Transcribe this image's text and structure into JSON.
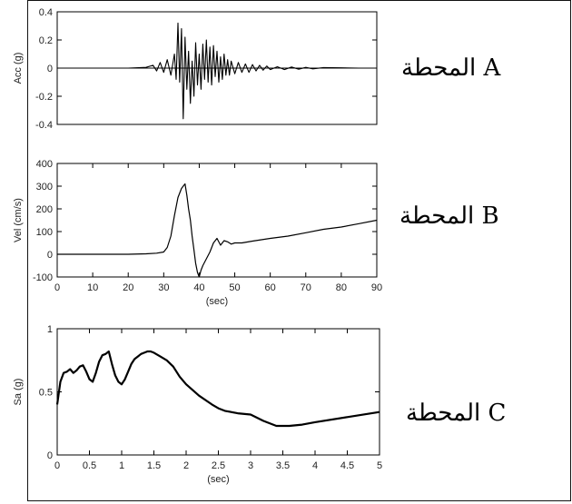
{
  "chart_data": [
    {
      "type": "line",
      "station_label": "المحطة A",
      "xlabel": "",
      "ylabel": "Acc (g)",
      "xlim": [
        0,
        90
      ],
      "ylim": [
        -0.4,
        0.4
      ],
      "yticks": [
        -0.4,
        -0.2,
        0,
        0.2,
        0.4
      ],
      "ytick_labels": [
        "-0.4",
        "-0.2",
        "0",
        "0.2",
        "0.4"
      ],
      "xticks": [],
      "xtick_labels": [],
      "grid": false,
      "series": [
        {
          "x": [
            0,
            5,
            10,
            15,
            20,
            25,
            27,
            28,
            29,
            30,
            31,
            32,
            33,
            33.5,
            34,
            34.5,
            35,
            35.5,
            36,
            36.5,
            37,
            37.5,
            38,
            38.5,
            39,
            39.5,
            40,
            40.5,
            41,
            41.5,
            42,
            42.5,
            43,
            43.5,
            44,
            44.5,
            45,
            45.5,
            46,
            46.5,
            47,
            47.5,
            48,
            48.5,
            49,
            50,
            51,
            52,
            53,
            54,
            55,
            56,
            57,
            58,
            59,
            60,
            62,
            64,
            66,
            68,
            70,
            72,
            75,
            80,
            85,
            90
          ],
          "y": [
            0,
            0,
            0,
            0,
            0,
            0.005,
            0.02,
            -0.02,
            0.04,
            -0.03,
            0.06,
            -0.05,
            0.1,
            -0.08,
            0.32,
            -0.1,
            0.28,
            -0.36,
            0.22,
            -0.15,
            0.12,
            -0.25,
            0.05,
            -0.2,
            0.18,
            -0.12,
            0.1,
            -0.15,
            0.17,
            -0.08,
            0.2,
            -0.1,
            0.15,
            -0.12,
            0.16,
            -0.06,
            0.12,
            -0.1,
            0.08,
            -0.08,
            0.1,
            -0.05,
            0.06,
            -0.05,
            0.05,
            -0.04,
            0.04,
            -0.03,
            0.03,
            -0.03,
            0.025,
            -0.02,
            0.02,
            -0.015,
            0.015,
            -0.01,
            0.01,
            -0.01,
            0.008,
            -0.008,
            0.005,
            -0.005,
            0.004,
            0.002,
            0,
            0
          ]
        }
      ]
    },
    {
      "type": "line",
      "station_label": "المحطة B",
      "xlabel": "(sec)",
      "ylabel": "Vel (cm/s)",
      "xlim": [
        0,
        90
      ],
      "ylim": [
        -100,
        400
      ],
      "yticks": [
        -100,
        0,
        100,
        200,
        300,
        400
      ],
      "ytick_labels": [
        "-100",
        "0",
        "100",
        "200",
        "300",
        "400"
      ],
      "xticks": [
        0,
        10,
        20,
        30,
        40,
        50,
        60,
        70,
        80,
        90
      ],
      "xtick_labels": [
        "0",
        "10",
        "20",
        "30",
        "40",
        "50",
        "60",
        "70",
        "80",
        "90"
      ],
      "grid": false,
      "series": [
        {
          "x": [
            0,
            10,
            20,
            25,
            28,
            30,
            31,
            32,
            33,
            34,
            35,
            35.5,
            36,
            36.5,
            37,
            37.5,
            38,
            38.5,
            39,
            39.5,
            40,
            40.5,
            41,
            42,
            43,
            44,
            45,
            46,
            47,
            48,
            49,
            50,
            52,
            55,
            60,
            65,
            70,
            75,
            80,
            85,
            90
          ],
          "y": [
            0,
            0,
            0,
            2,
            5,
            10,
            30,
            80,
            170,
            250,
            290,
            300,
            310,
            260,
            200,
            150,
            80,
            20,
            -40,
            -80,
            -100,
            -70,
            -50,
            -20,
            10,
            50,
            70,
            40,
            60,
            55,
            45,
            50,
            50,
            58,
            70,
            80,
            95,
            110,
            120,
            135,
            150
          ]
        }
      ]
    },
    {
      "type": "line",
      "station_label": "المحطة C",
      "xlabel": "(sec)",
      "ylabel": "Sa (g)",
      "xlim": [
        0,
        5
      ],
      "ylim": [
        0,
        1
      ],
      "yticks": [
        0,
        0.5,
        1
      ],
      "ytick_labels": [
        "0",
        "0.5",
        "1"
      ],
      "xticks": [
        0,
        0.5,
        1,
        1.5,
        2,
        2.5,
        3,
        3.5,
        4,
        4.5,
        5
      ],
      "xtick_labels": [
        "0",
        "0.5",
        "1",
        "1.5",
        "2",
        "2.5",
        "3",
        "3.5",
        "4",
        "4.5",
        "5"
      ],
      "grid": false,
      "series": [
        {
          "x": [
            0,
            0.05,
            0.1,
            0.15,
            0.2,
            0.25,
            0.3,
            0.35,
            0.4,
            0.45,
            0.5,
            0.55,
            0.6,
            0.65,
            0.7,
            0.75,
            0.8,
            0.85,
            0.9,
            0.95,
            1.0,
            1.05,
            1.1,
            1.15,
            1.2,
            1.25,
            1.3,
            1.35,
            1.4,
            1.45,
            1.5,
            1.6,
            1.7,
            1.8,
            1.9,
            2.0,
            2.2,
            2.4,
            2.5,
            2.6,
            2.8,
            3.0,
            3.2,
            3.4,
            3.6,
            3.8,
            4.0,
            4.5,
            5.0
          ],
          "y": [
            0.4,
            0.58,
            0.65,
            0.66,
            0.68,
            0.65,
            0.67,
            0.7,
            0.71,
            0.66,
            0.6,
            0.58,
            0.65,
            0.74,
            0.79,
            0.8,
            0.82,
            0.72,
            0.63,
            0.58,
            0.56,
            0.6,
            0.66,
            0.72,
            0.76,
            0.78,
            0.8,
            0.81,
            0.82,
            0.82,
            0.81,
            0.78,
            0.75,
            0.7,
            0.62,
            0.56,
            0.47,
            0.4,
            0.37,
            0.35,
            0.33,
            0.32,
            0.27,
            0.23,
            0.23,
            0.24,
            0.26,
            0.3,
            0.34
          ]
        }
      ]
    }
  ]
}
